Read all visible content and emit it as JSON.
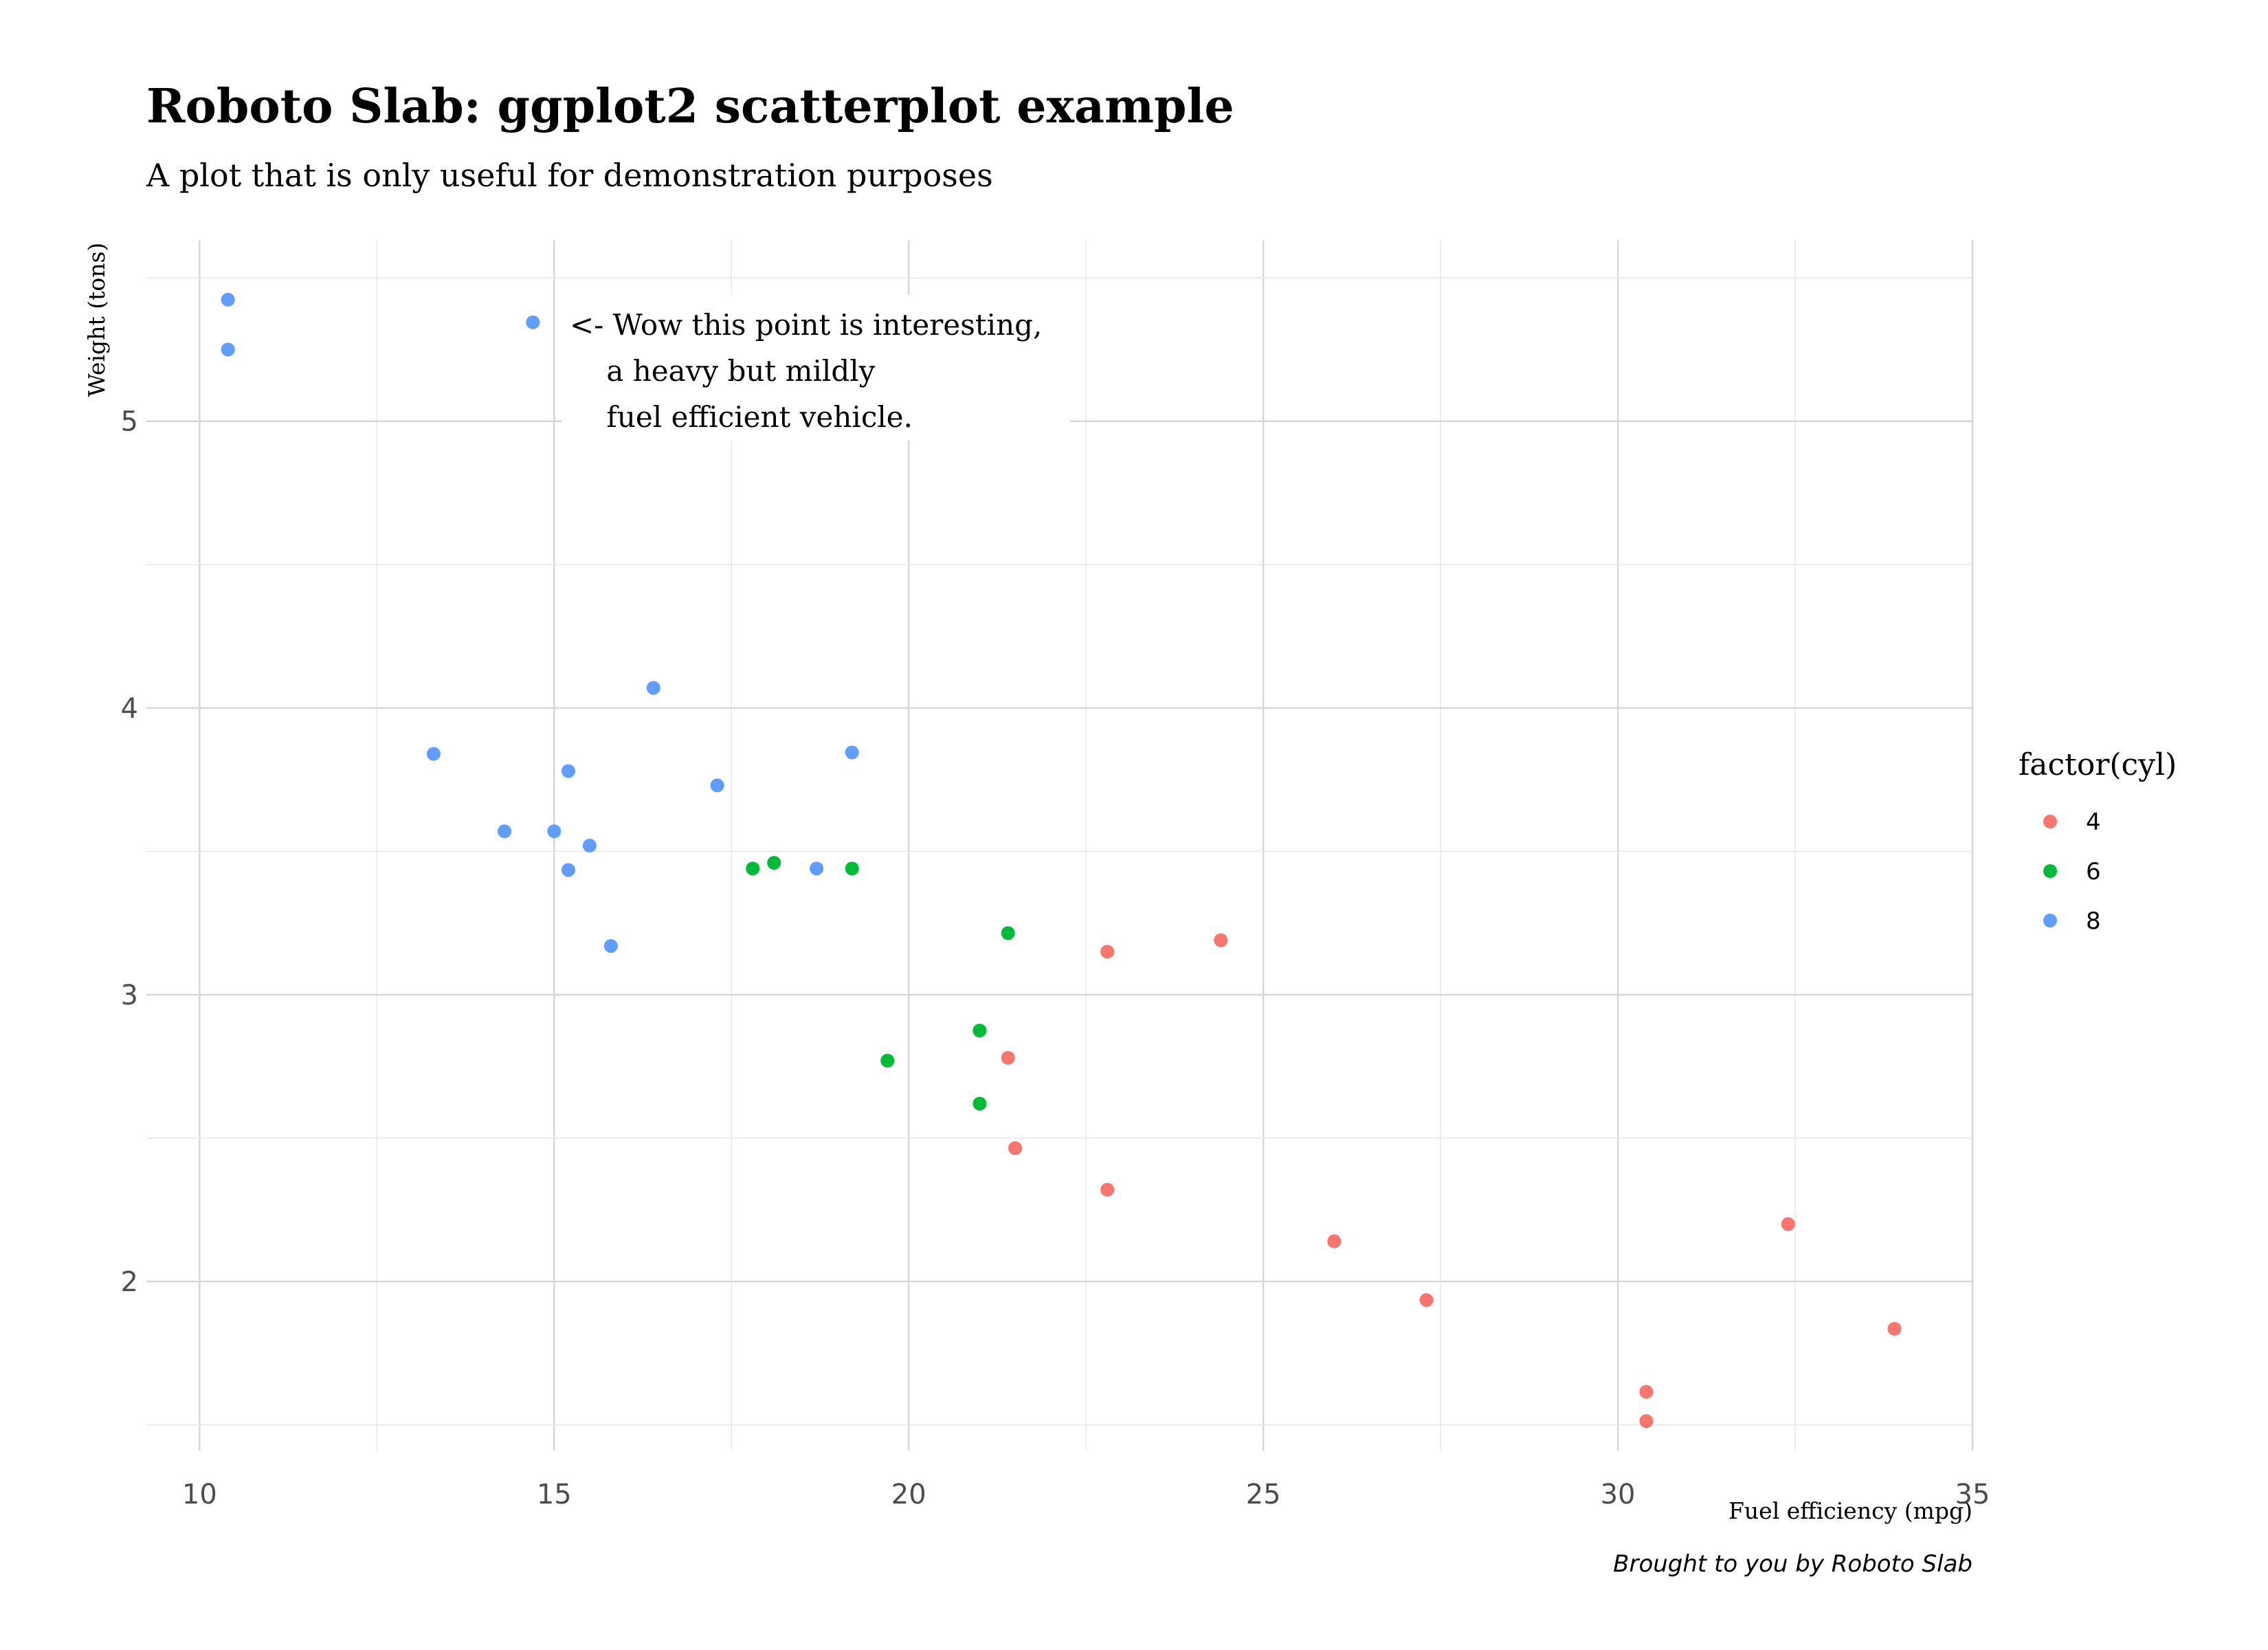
{
  "chart_data": {
    "type": "scatter",
    "title": "Roboto Slab: ggplot2 scatterplot example",
    "subtitle": "A plot that is only useful for demonstration purposes",
    "xlabel": "Fuel efficiency (mpg)",
    "ylabel": "Weight (tons)",
    "caption": "Brought to you by Roboto Slab",
    "xlim": [
      9.25,
      35
    ],
    "ylim": [
      1.41,
      5.63
    ],
    "xticks": [
      10,
      15,
      20,
      25,
      30,
      35
    ],
    "yticks": [
      2,
      3,
      4,
      5
    ],
    "grid": true,
    "legend": {
      "title": "factor(cyl)",
      "position": "right",
      "entries": [
        {
          "label": "4",
          "color": "#F8766D"
        },
        {
          "label": "6",
          "color": "#00BA38"
        },
        {
          "label": "8",
          "color": "#619CFF"
        }
      ]
    },
    "annotation": {
      "lines": [
        "<- Wow this point is interesting,",
        "    a heavy but mildly",
        "    fuel efficient vehicle."
      ],
      "x": 15.2,
      "y": 5.35
    },
    "series": [
      {
        "name": "4",
        "color": "#F8766D",
        "points": [
          [
            22.8,
            2.32
          ],
          [
            24.4,
            3.19
          ],
          [
            22.8,
            3.15
          ],
          [
            32.4,
            2.2
          ],
          [
            30.4,
            1.615
          ],
          [
            33.9,
            1.835
          ],
          [
            21.5,
            2.465
          ],
          [
            27.3,
            1.935
          ],
          [
            26.0,
            2.14
          ],
          [
            30.4,
            1.513
          ],
          [
            21.4,
            2.78
          ]
        ]
      },
      {
        "name": "6",
        "color": "#00BA38",
        "points": [
          [
            21.0,
            2.62
          ],
          [
            21.0,
            2.875
          ],
          [
            21.4,
            3.215
          ],
          [
            18.1,
            3.46
          ],
          [
            19.2,
            3.44
          ],
          [
            17.8,
            3.44
          ],
          [
            19.7,
            2.77
          ]
        ]
      },
      {
        "name": "8",
        "color": "#619CFF",
        "points": [
          [
            18.7,
            3.44
          ],
          [
            14.3,
            3.57
          ],
          [
            16.4,
            4.07
          ],
          [
            17.3,
            3.73
          ],
          [
            15.2,
            3.78
          ],
          [
            10.4,
            5.25
          ],
          [
            10.4,
            5.424
          ],
          [
            14.7,
            5.345
          ],
          [
            15.5,
            3.52
          ],
          [
            15.2,
            3.435
          ],
          [
            13.3,
            3.84
          ],
          [
            19.2,
            3.845
          ],
          [
            15.8,
            3.17
          ],
          [
            15.0,
            3.57
          ]
        ]
      }
    ]
  }
}
